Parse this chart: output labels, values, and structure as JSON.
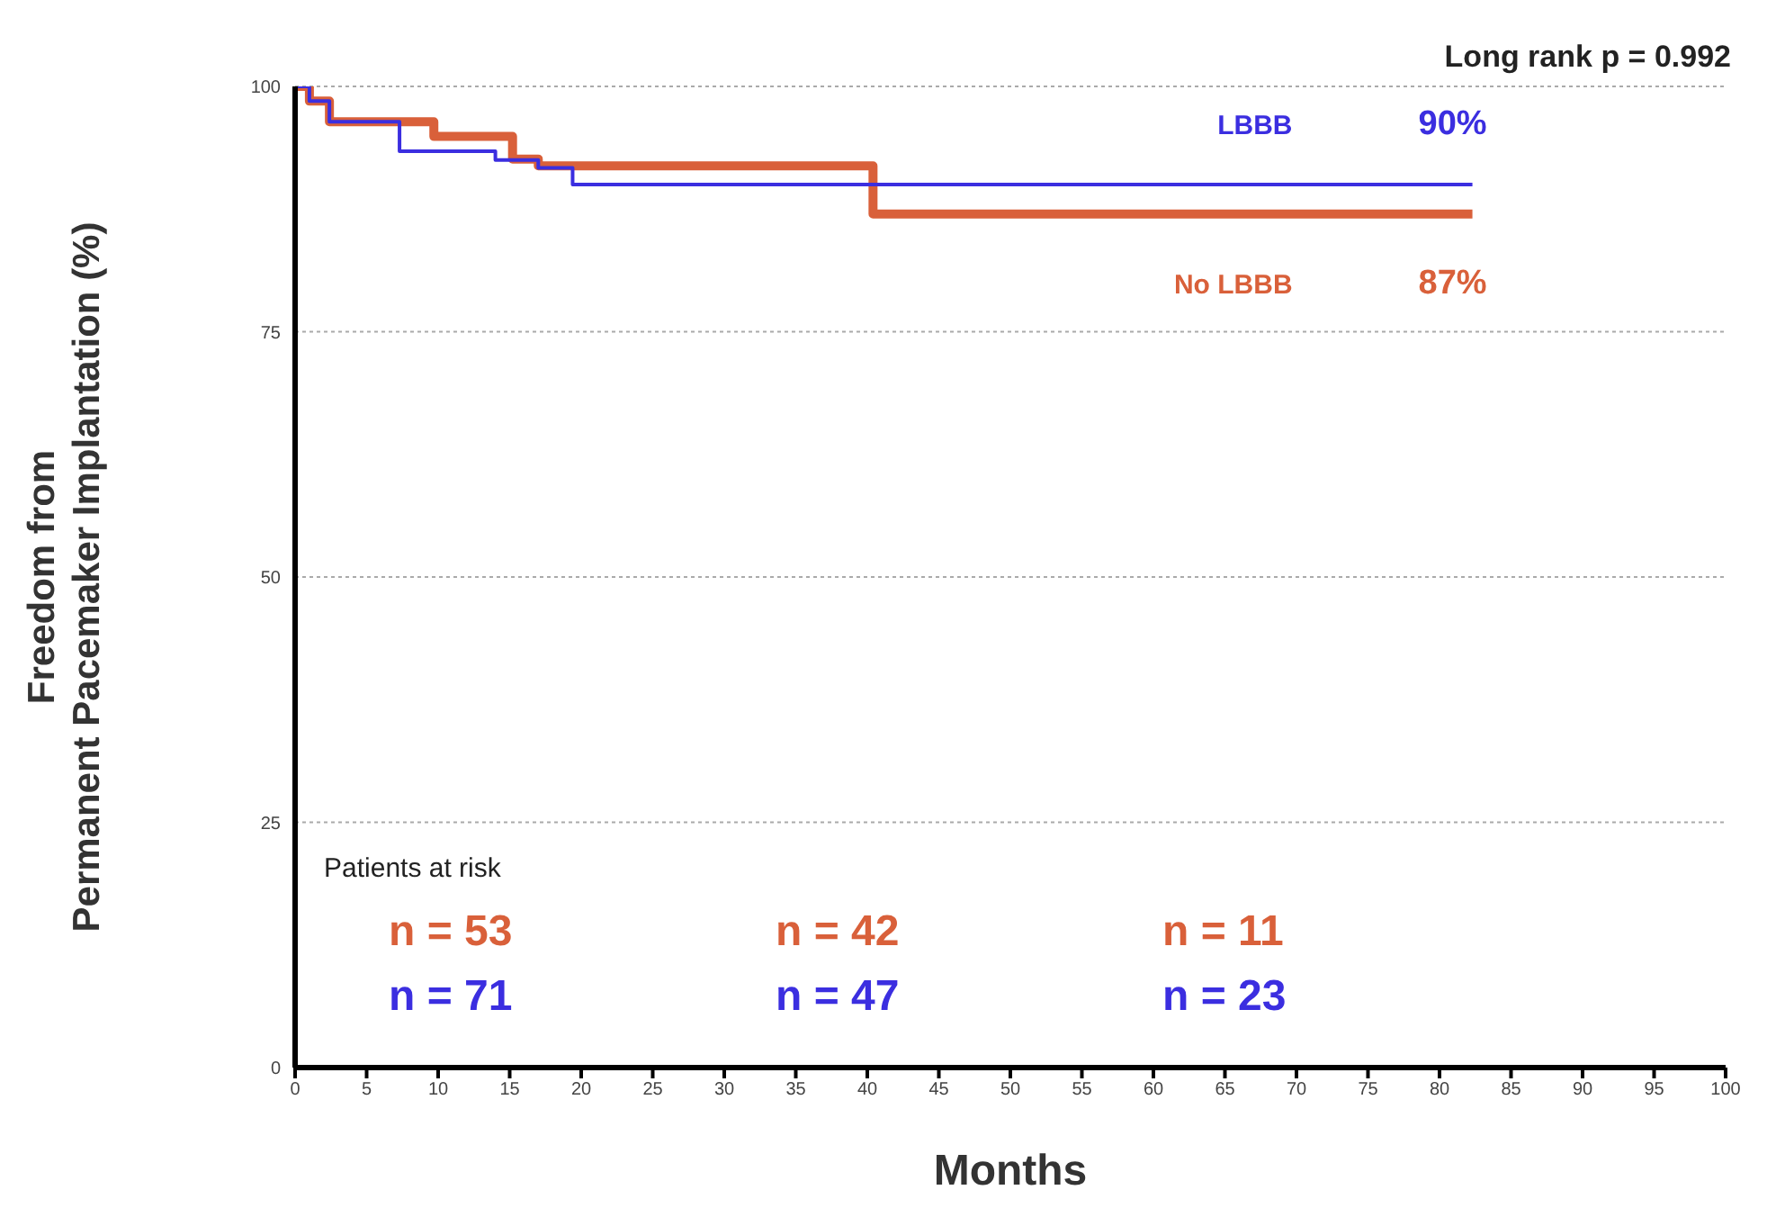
{
  "chart_data": {
    "type": "step",
    "xlabel": "Months",
    "ylabel": "Freedom from\nPermanent Pacemaker Implantation  (%)",
    "series": [
      {
        "name": "LBBB",
        "color": "#3b2ee0",
        "x": [
          0,
          1,
          2.4,
          7.3,
          14,
          17,
          19.4,
          82.3
        ],
        "values": [
          100,
          98.5,
          96.4,
          93.4,
          92.5,
          91.7,
          90,
          90
        ],
        "value_labels": [
          null,
          null,
          null,
          null,
          null,
          null,
          null,
          "90%"
        ]
      },
      {
        "name": "No LBBB",
        "color": "#d9603a",
        "x": [
          0,
          1,
          2.4,
          9.7,
          15.2,
          17,
          40.4,
          82.3
        ],
        "values": [
          100,
          98.5,
          96.4,
          94.9,
          92.6,
          91.9,
          87,
          87
        ],
        "value_labels": [
          null,
          null,
          null,
          null,
          null,
          null,
          null,
          "87%"
        ]
      }
    ],
    "xlim": [
      0,
      100
    ],
    "xticks": [
      0,
      5,
      10,
      15,
      20,
      25,
      30,
      35,
      40,
      45,
      50,
      55,
      60,
      65,
      70,
      75,
      80,
      85,
      90,
      95,
      100
    ],
    "ylim": [
      0,
      100
    ],
    "yticks": [
      0,
      25,
      50,
      75,
      100
    ],
    "grid": "y",
    "marker": "none",
    "line_style": "solid",
    "annotations": [
      "Long rank p = 0.992",
      "Patients at risk",
      "n = 53",
      "n = 71",
      "n = 42",
      "n = 47",
      "n = 11",
      "n = 23"
    ]
  }
}
